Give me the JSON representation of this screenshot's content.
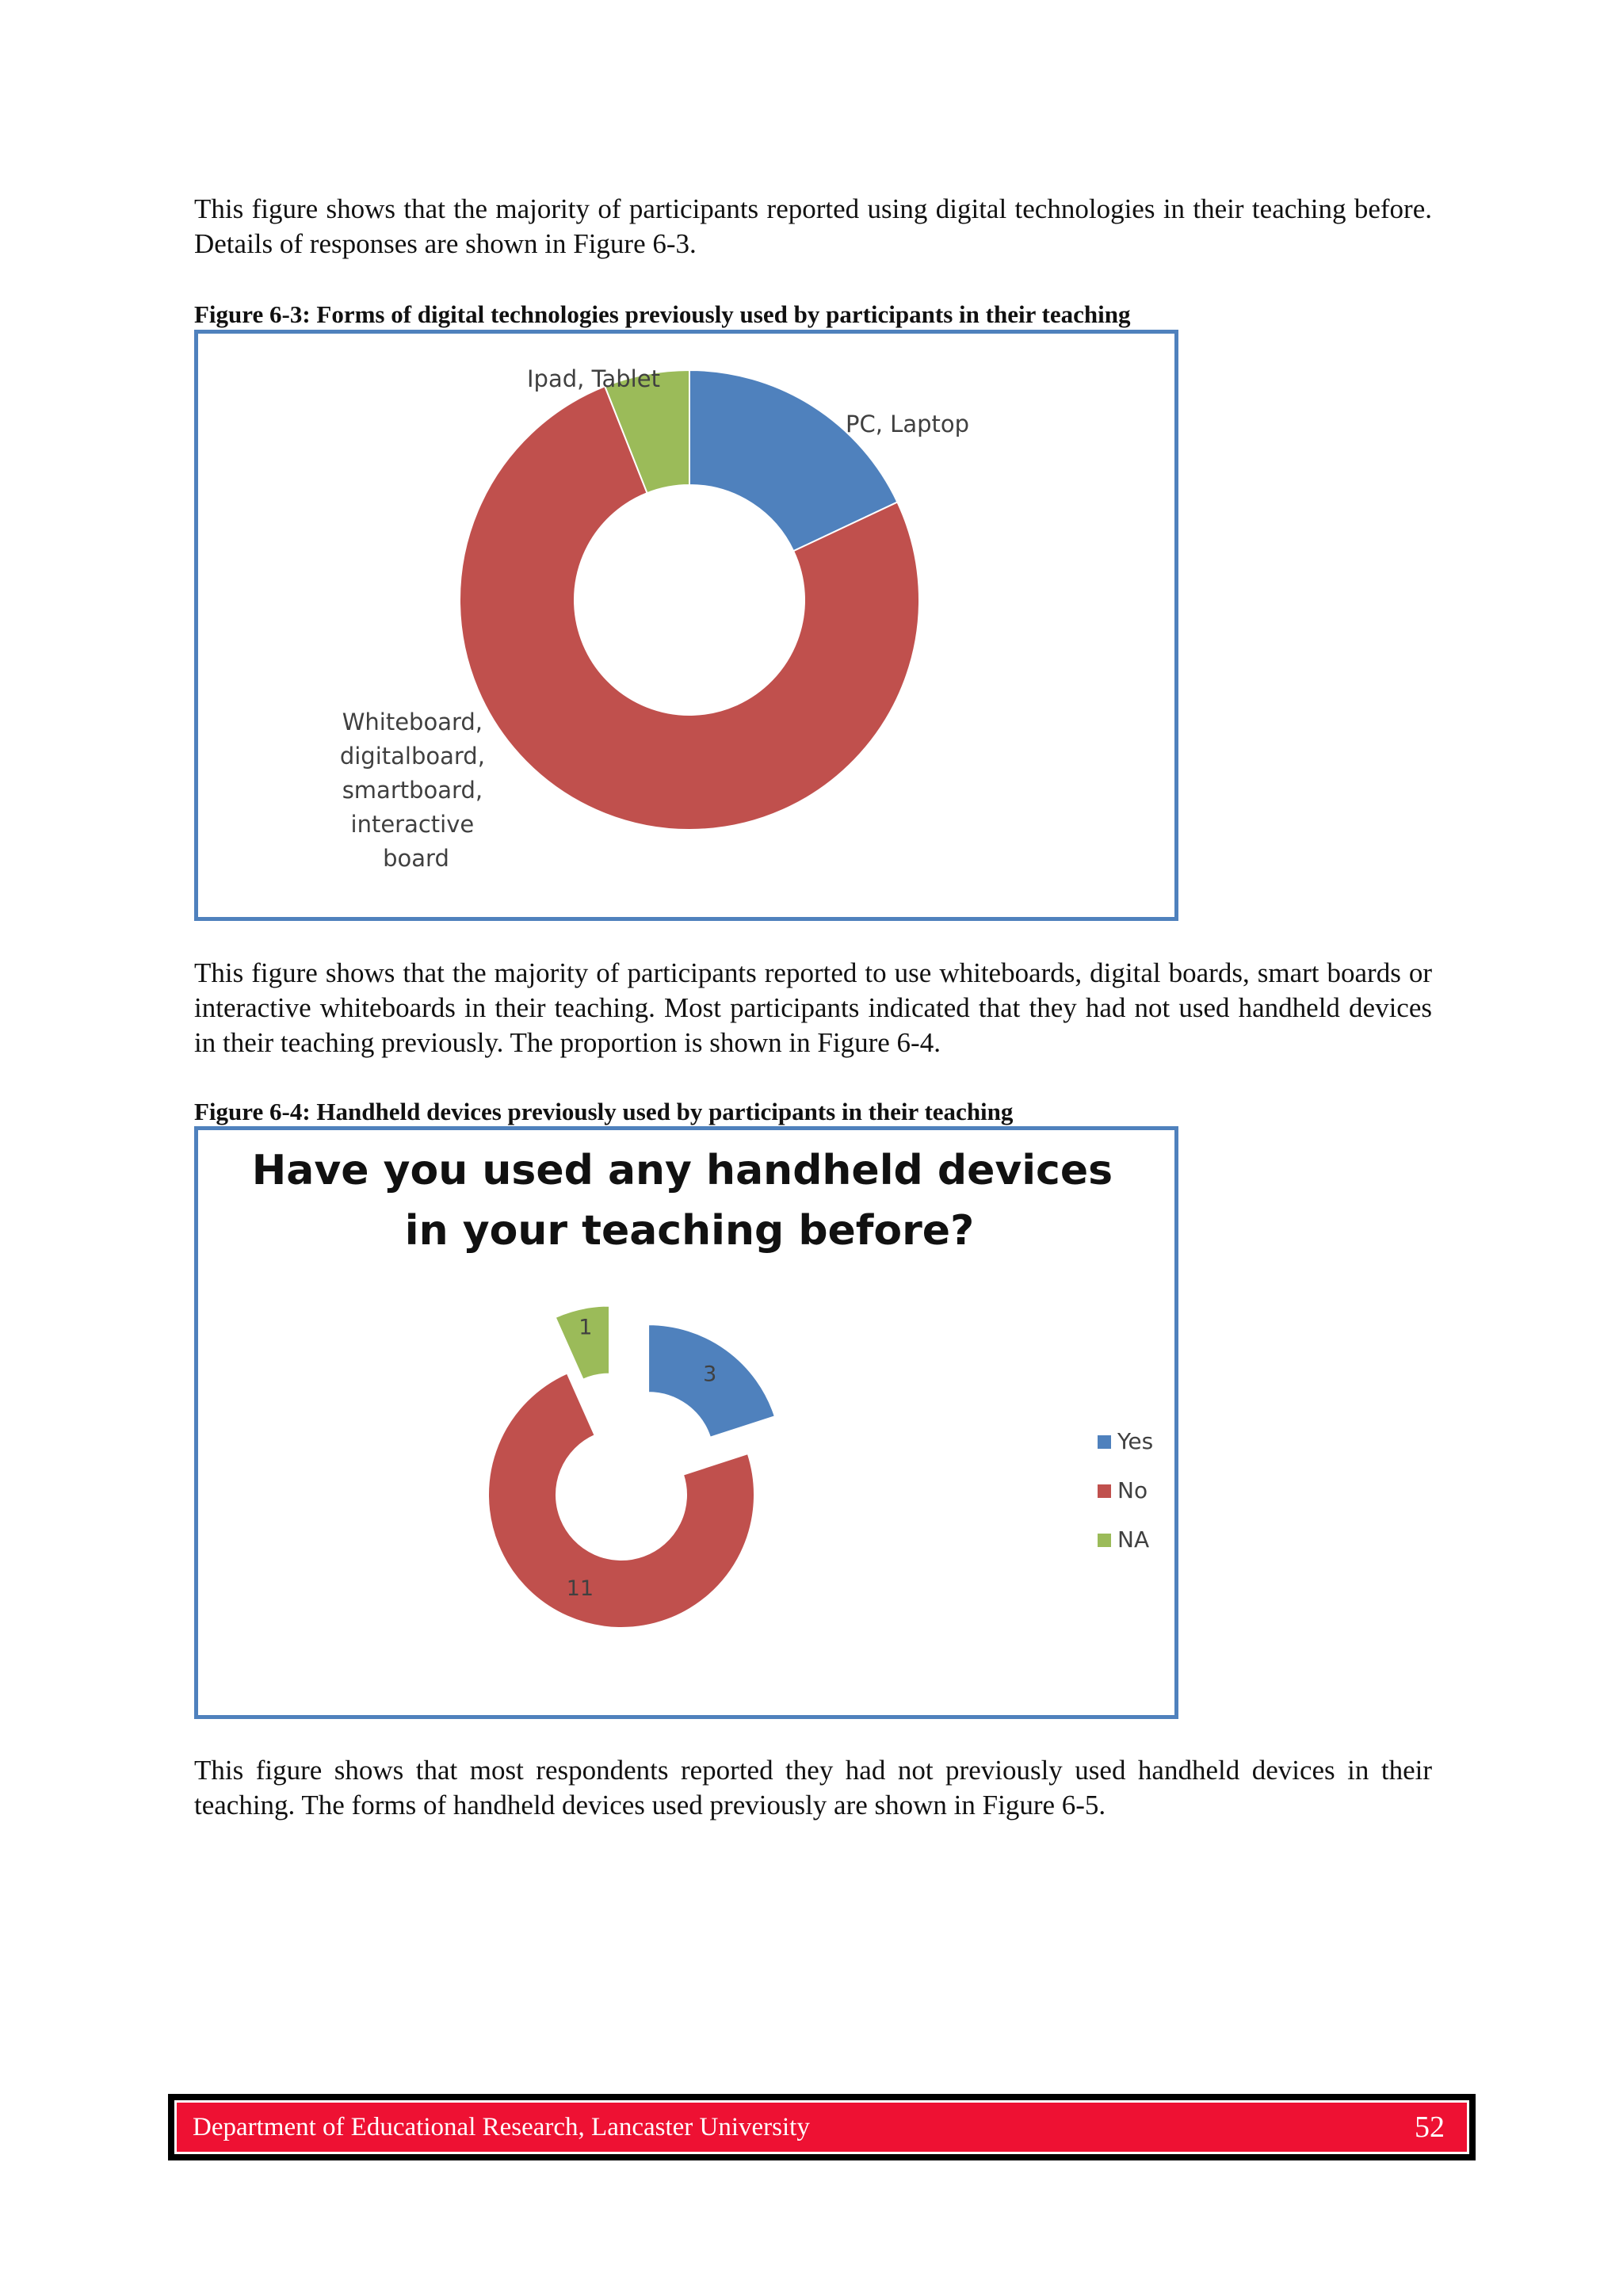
{
  "paragraphs": {
    "p1": "This figure shows that the majority of participants reported using digital technologies in their teaching before. Details of responses are shown in Figure 6-3.",
    "p2": "This figure shows that the majority of participants reported to use whiteboards, digital boards, smart boards or interactive whiteboards in their teaching. Most participants indicated that they had not used handheld devices in their teaching previously. The proportion is shown in Figure 6-4.",
    "p3": "This figure shows that most respondents reported they had not previously used handheld devices in their teaching. The forms of handheld devices used previously are shown in Figure 6-5."
  },
  "captions": {
    "fig3": "Figure 6-3: Forms of digital technologies previously used by participants in their teaching",
    "fig4": "Figure 6-4: Handheld devices previously used by participants in their teaching"
  },
  "chart_data": [
    {
      "type": "pie",
      "variant": "doughnut",
      "title": "",
      "labels_shown": [
        "PC, Laptop",
        "Whiteboard, digitalboard, smartboard, interactive board",
        "Ipad, Tablet"
      ],
      "categories": [
        "PC, Laptop",
        "Whiteboard, digitalboard, smartboard, interactive board",
        "Ipad, Tablet"
      ],
      "values": [
        18,
        76,
        6
      ],
      "colors": [
        "#4f81bd",
        "#c0504d",
        "#9bbb59"
      ],
      "legend": "none",
      "data_labels": "category names outside slices"
    },
    {
      "type": "pie",
      "variant": "exploded doughnut",
      "title": "Have you used any handheld devices in your teaching before?",
      "title_lines": [
        "Have you used any handheld devices",
        "in your teaching before?"
      ],
      "categories": [
        "Yes",
        "No",
        "NA"
      ],
      "values": [
        3,
        11,
        1
      ],
      "colors": [
        "#4f81bd",
        "#c0504d",
        "#9bbb59"
      ],
      "legend": "right",
      "data_labels": "values"
    }
  ],
  "footer": {
    "left": "Department of Educational Research, Lancaster University",
    "page_number": "52"
  }
}
